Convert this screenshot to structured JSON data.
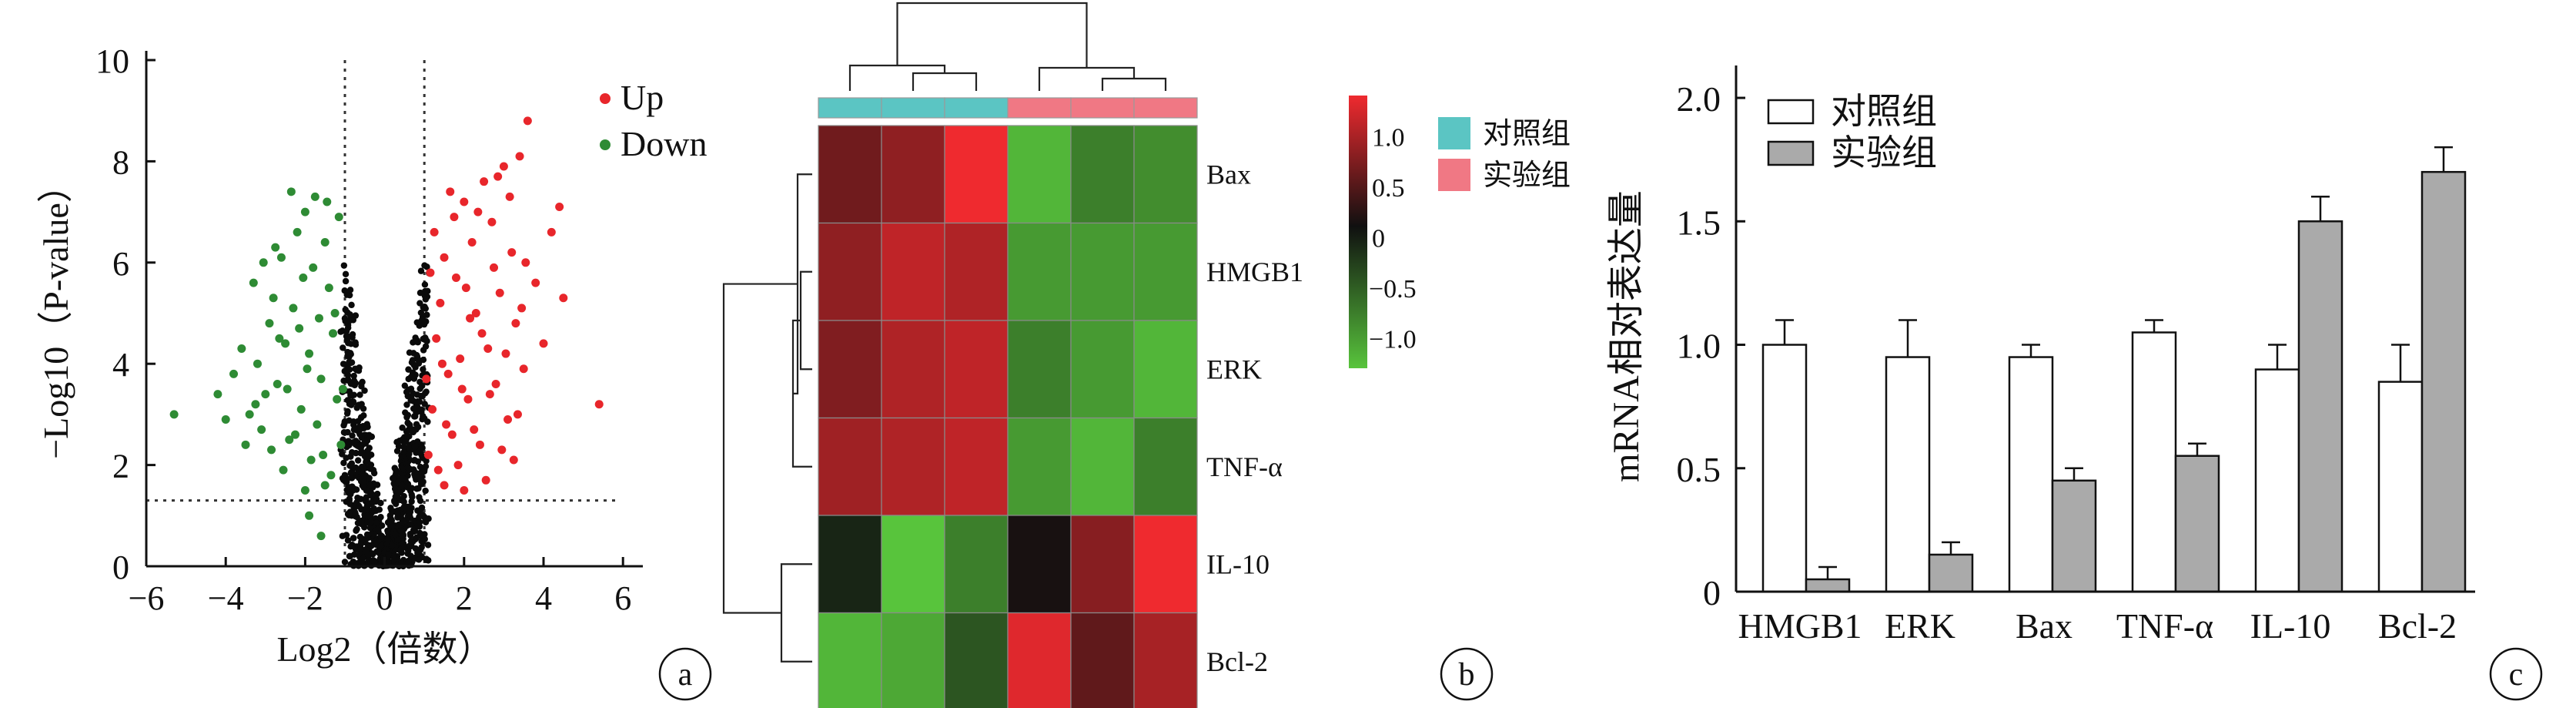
{
  "panels": {
    "a": {
      "label": "a",
      "chart_data": {
        "type": "scatter",
        "title": "",
        "xlabel": "Log2（倍数）",
        "ylabel": "−Log10（P-value）",
        "xlim": [
          -6,
          6.5
        ],
        "ylim": [
          0,
          10
        ],
        "xticks": [
          -6,
          -4,
          -2,
          0,
          2,
          4,
          6
        ],
        "xtick_labels": [
          "−6",
          "−4",
          "−2",
          "0",
          "2",
          "4",
          "6"
        ],
        "yticks": [
          0,
          2,
          4,
          6,
          8,
          10
        ],
        "ytick_labels": [
          "0",
          "2",
          "4",
          "6",
          "8",
          "10"
        ],
        "thresholds": {
          "x": [
            -1,
            1
          ],
          "y": 1.3
        },
        "legend_position": "top-right",
        "series": [
          {
            "name": "Up",
            "color": "#e8262b",
            "points": [
              [
                1.1,
                2.2
              ],
              [
                1.2,
                3.1
              ],
              [
                1.3,
                4.5
              ],
              [
                1.4,
                5.2
              ],
              [
                1.5,
                6.1
              ],
              [
                1.6,
                3.8
              ],
              [
                1.7,
                2.6
              ],
              [
                1.8,
                5.7
              ],
              [
                1.9,
                4.1
              ],
              [
                2.0,
                7.2
              ],
              [
                2.1,
                3.3
              ],
              [
                2.2,
                6.4
              ],
              [
                2.3,
                5.0
              ],
              [
                2.4,
                2.4
              ],
              [
                2.5,
                7.6
              ],
              [
                2.6,
                4.3
              ],
              [
                2.7,
                6.8
              ],
              [
                2.8,
                3.6
              ],
              [
                2.9,
                5.4
              ],
              [
                3.0,
                7.9
              ],
              [
                3.1,
                2.9
              ],
              [
                3.2,
                6.2
              ],
              [
                3.3,
                4.8
              ],
              [
                3.4,
                8.1
              ],
              [
                3.5,
                3.9
              ],
              [
                3.6,
                8.8
              ],
              [
                3.8,
                5.6
              ],
              [
                4.0,
                4.4
              ],
              [
                4.2,
                6.6
              ],
              [
                4.4,
                7.1
              ],
              [
                4.5,
                5.3
              ],
              [
                5.4,
                3.2
              ],
              [
                1.15,
                5.8
              ],
              [
                1.35,
                1.9
              ],
              [
                1.55,
                2.8
              ],
              [
                1.75,
                6.9
              ],
              [
                1.95,
                3.5
              ],
              [
                2.15,
                4.9
              ],
              [
                2.35,
                7.0
              ],
              [
                2.55,
                1.7
              ],
              [
                2.75,
                5.9
              ],
              [
                2.95,
                2.3
              ],
              [
                3.15,
                7.3
              ],
              [
                3.35,
                3.0
              ],
              [
                3.55,
                6.0
              ],
              [
                1.25,
                6.6
              ],
              [
                1.45,
                4.0
              ],
              [
                1.65,
                7.4
              ],
              [
                1.85,
                2.0
              ],
              [
                2.05,
                5.5
              ],
              [
                2.25,
                2.7
              ],
              [
                2.45,
                4.6
              ],
              [
                2.65,
                3.4
              ],
              [
                2.85,
                7.7
              ],
              [
                3.05,
                4.2
              ],
              [
                3.25,
                2.1
              ],
              [
                3.45,
                5.1
              ],
              [
                1.05,
                3.7
              ],
              [
                1.5,
                1.6
              ],
              [
                2.0,
                1.5
              ]
            ]
          },
          {
            "name": "Down",
            "color": "#2e8b34",
            "points": [
              [
                -1.1,
                2.4
              ],
              [
                -1.2,
                3.3
              ],
              [
                -1.3,
                4.6
              ],
              [
                -1.4,
                5.5
              ],
              [
                -1.5,
                6.4
              ],
              [
                -1.6,
                3.7
              ],
              [
                -1.7,
                2.8
              ],
              [
                -1.8,
                5.9
              ],
              [
                -1.9,
                4.2
              ],
              [
                -2.0,
                7.0
              ],
              [
                -2.1,
                3.1
              ],
              [
                -2.2,
                6.6
              ],
              [
                -2.3,
                5.1
              ],
              [
                -2.4,
                2.5
              ],
              [
                -2.5,
                4.4
              ],
              [
                -2.6,
                6.1
              ],
              [
                -2.7,
                3.6
              ],
              [
                -2.8,
                5.3
              ],
              [
                -2.9,
                4.8
              ],
              [
                -3.0,
                3.4
              ],
              [
                -3.1,
                2.7
              ],
              [
                -3.2,
                4.0
              ],
              [
                -3.3,
                5.6
              ],
              [
                -3.4,
                3.0
              ],
              [
                -3.6,
                4.3
              ],
              [
                -3.8,
                3.8
              ],
              [
                -4.0,
                2.9
              ],
              [
                -5.3,
                3.0
              ],
              [
                -1.15,
                6.9
              ],
              [
                -1.35,
                1.8
              ],
              [
                -1.55,
                2.2
              ],
              [
                -1.75,
                7.3
              ],
              [
                -1.95,
                3.9
              ],
              [
                -2.15,
                4.7
              ],
              [
                -2.35,
                7.4
              ],
              [
                -2.55,
                1.9
              ],
              [
                -2.75,
                6.3
              ],
              [
                -1.25,
                5.0
              ],
              [
                -1.45,
                7.2
              ],
              [
                -1.65,
                4.9
              ],
              [
                -1.85,
                2.1
              ],
              [
                -2.05,
                5.7
              ],
              [
                -2.25,
                2.6
              ],
              [
                -2.45,
                3.5
              ],
              [
                -2.65,
                4.5
              ],
              [
                -2.85,
                2.3
              ],
              [
                -3.05,
                6.0
              ],
              [
                -3.25,
                3.2
              ],
              [
                -1.05,
                3.5
              ],
              [
                -1.5,
                1.6
              ],
              [
                -2.0,
                1.5
              ],
              [
                -3.5,
                2.4
              ],
              [
                -4.2,
                3.4
              ],
              [
                -1.6,
                0.6
              ],
              [
                -1.9,
                1.0
              ]
            ]
          }
        ]
      }
    },
    "b": {
      "label": "b",
      "chart_data": {
        "type": "heatmap",
        "title": "",
        "rows": [
          "Bax",
          "HMGB1",
          "ERK",
          "TNF-α",
          "IL-10",
          "Bcl-2"
        ],
        "groups": [
          "对照组",
          "实验组"
        ],
        "group_colors": {
          "对照组": "#5bc5c3",
          "实验组": "#f07884"
        },
        "column_groups": [
          "对照组",
          "对照组",
          "对照组",
          "实验组",
          "实验组",
          "实验组"
        ],
        "values": [
          [
            0.6,
            0.8,
            1.4,
            -1.2,
            -0.8,
            -0.9
          ],
          [
            0.8,
            1.1,
            1.0,
            -1.0,
            -1.0,
            -1.0
          ],
          [
            0.7,
            1.0,
            1.1,
            -0.8,
            -1.0,
            -1.2
          ],
          [
            0.9,
            1.0,
            1.1,
            -1.0,
            -1.2,
            -0.8
          ],
          [
            -0.15,
            -1.3,
            -0.8,
            0.05,
            0.75,
            1.45
          ],
          [
            -1.2,
            -1.1,
            -0.5,
            1.3,
            0.5,
            0.95
          ]
        ],
        "colorbar": {
          "range": [
            -1.3,
            1.4
          ],
          "ticks": [
            1.0,
            0.5,
            0,
            -0.5,
            -1.0
          ],
          "tick_labels": [
            "1.0",
            "0.5",
            "0",
            "−0.5",
            "−1.0"
          ]
        },
        "legend_position": "right"
      }
    },
    "c": {
      "label": "c",
      "chart_data": {
        "type": "bar",
        "title": "",
        "xlabel": "",
        "ylabel": "mRNA相对表达量",
        "categories": [
          "HMGB1",
          "ERK",
          "Bax",
          "TNF-α",
          "IL-10",
          "Bcl-2"
        ],
        "ylim": [
          0,
          2.1
        ],
        "yticks": [
          0,
          0.5,
          1.0,
          1.5,
          2.0
        ],
        "ytick_labels": [
          "0",
          "0.5",
          "1.0",
          "1.5",
          "2.0"
        ],
        "legend_position": "top-left",
        "series": [
          {
            "name": "对照组",
            "color": "#ffffff",
            "values": [
              1.0,
              0.95,
              0.95,
              1.05,
              0.9,
              0.85
            ],
            "errors": [
              0.1,
              0.15,
              0.05,
              0.05,
              0.1,
              0.15
            ]
          },
          {
            "name": "实验组",
            "color": "#aaaaaa",
            "values": [
              0.05,
              0.15,
              0.45,
              0.55,
              1.5,
              1.7
            ],
            "errors": [
              0.05,
              0.05,
              0.05,
              0.05,
              0.1,
              0.1
            ]
          }
        ]
      }
    }
  }
}
